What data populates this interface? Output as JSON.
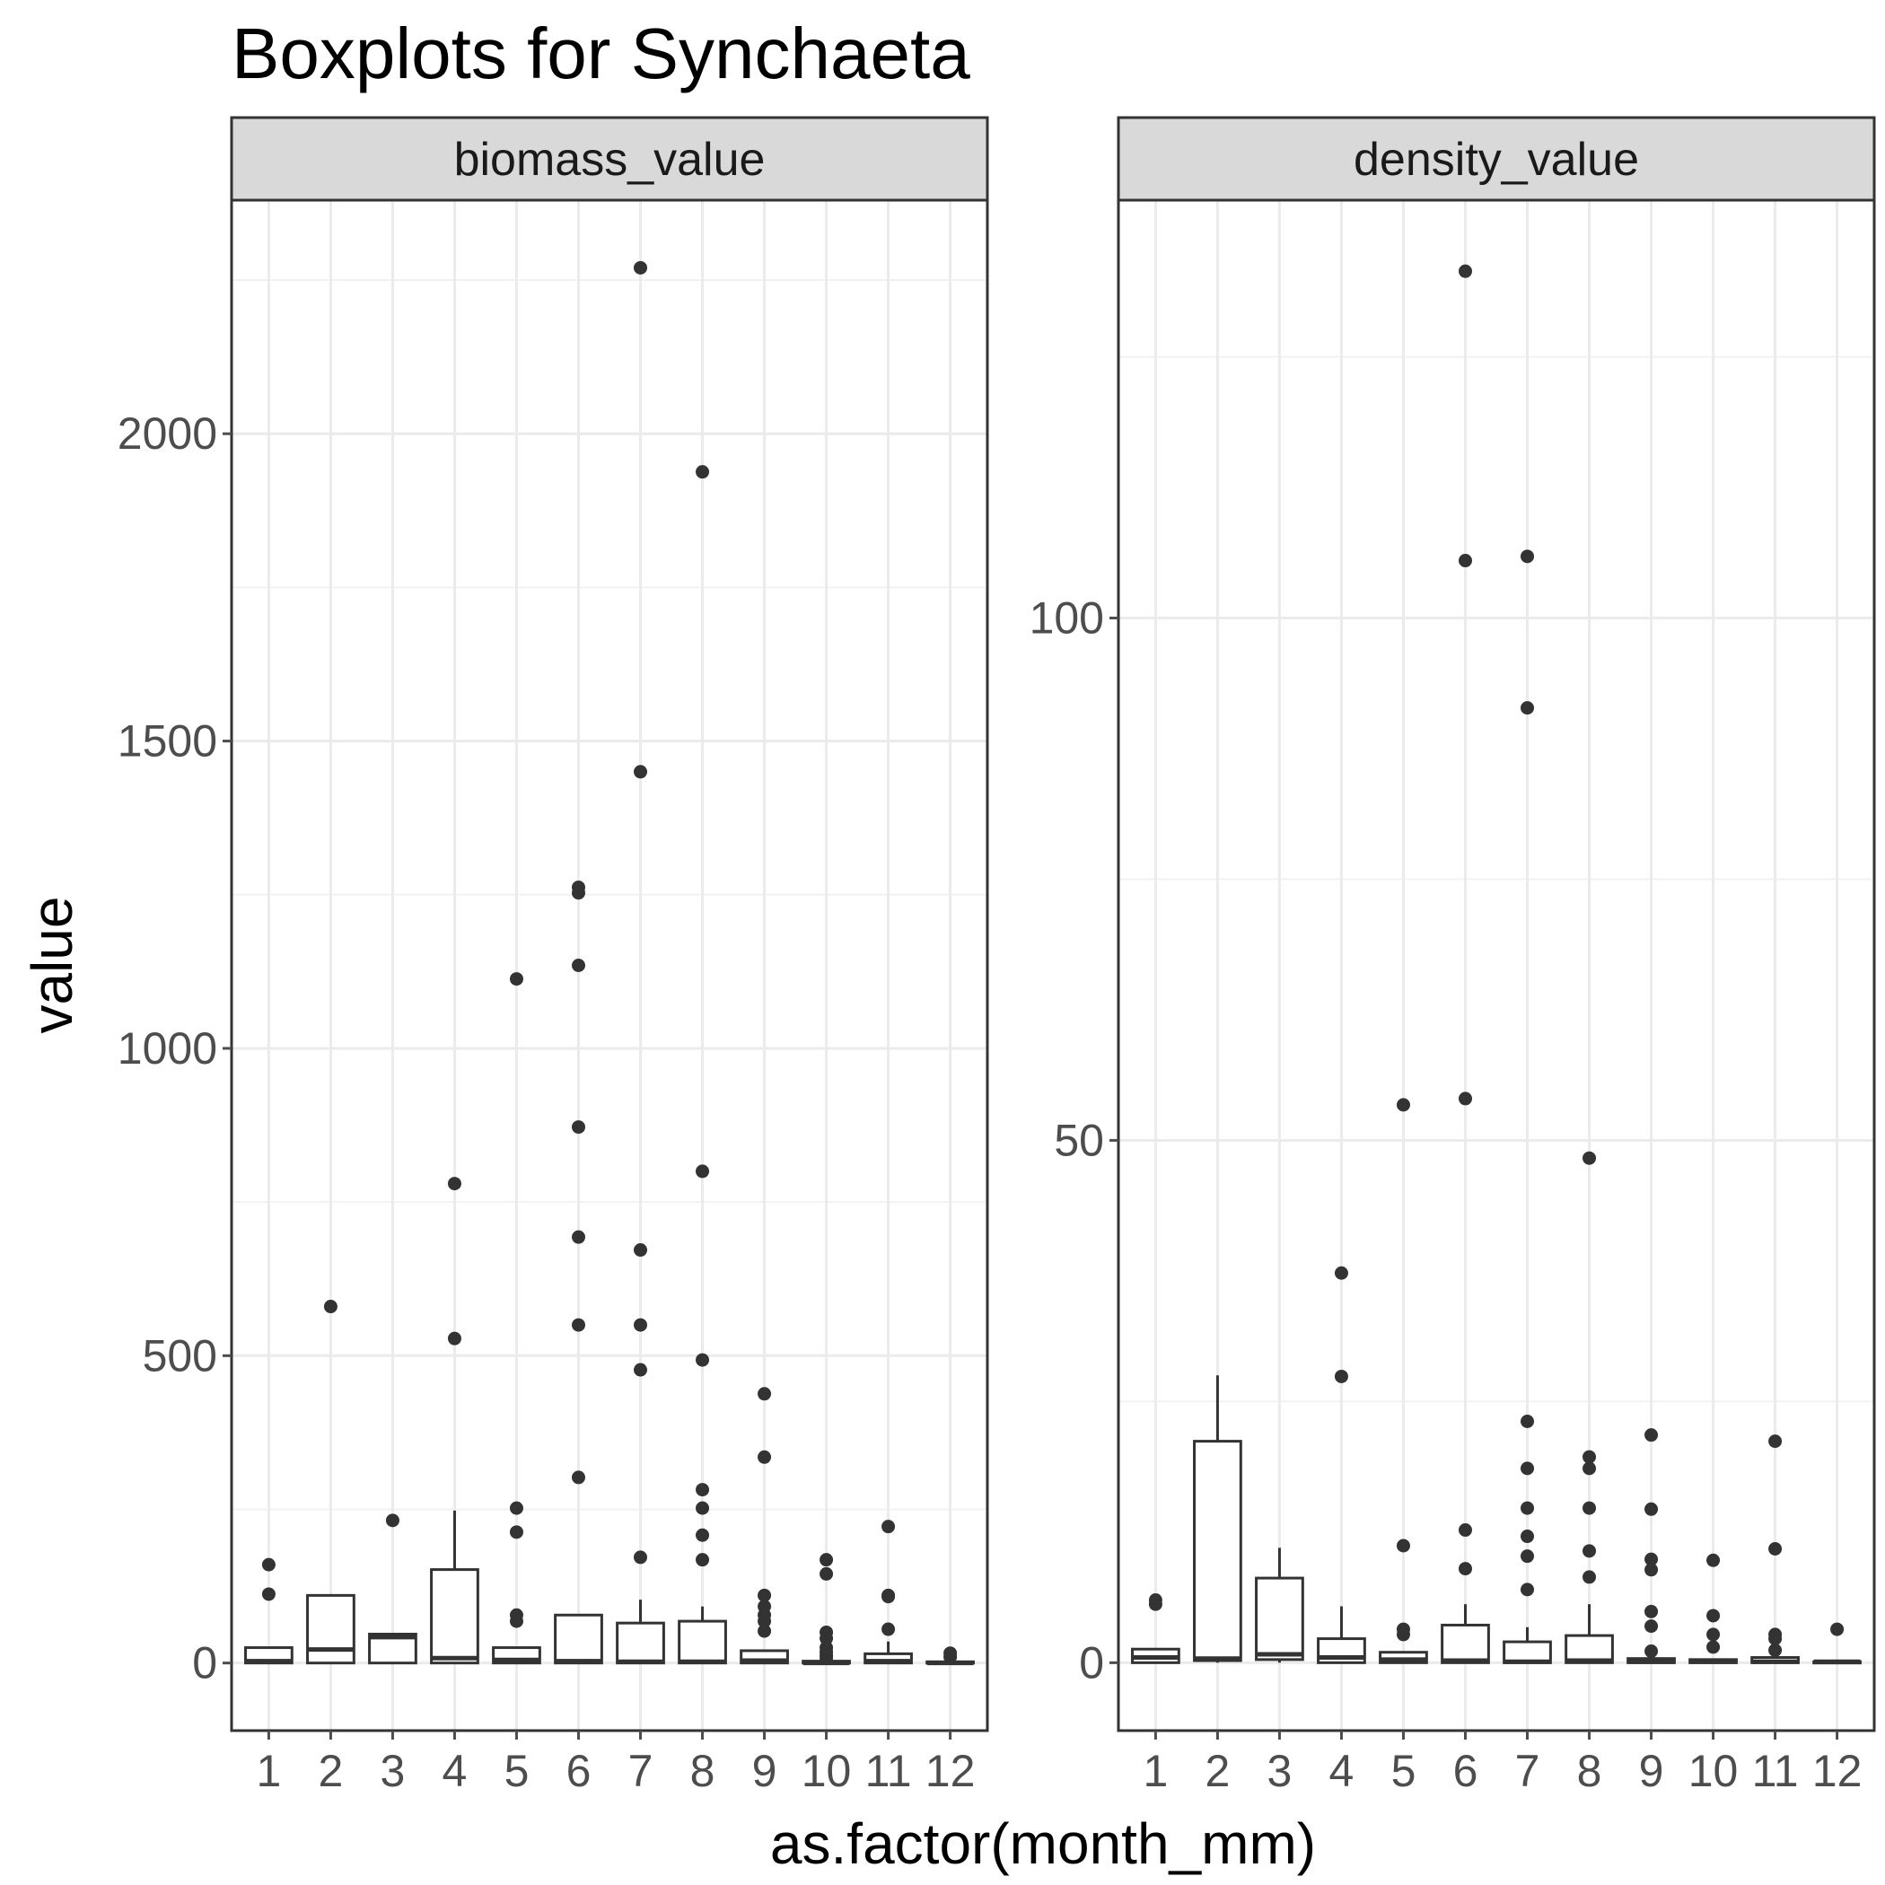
{
  "title": "Boxplots for Synchaeta",
  "xlabel": "as.factor(month_mm)",
  "ylabel": "value",
  "chart_data": {
    "type": "boxplot",
    "title": "Boxplots for Synchaeta",
    "xlabel": "as.factor(month_mm)",
    "ylabel": "value",
    "categories": [
      "1",
      "2",
      "3",
      "4",
      "5",
      "6",
      "7",
      "8",
      "9",
      "10",
      "11",
      "12"
    ],
    "grid": true,
    "panels": [
      {
        "name": "biomass_value",
        "ylim": [
          -110,
          2380
        ],
        "yticks": [
          0,
          500,
          1000,
          1500,
          2000
        ],
        "ytick_labels": [
          "0",
          "500",
          "1000",
          "1500",
          "2000"
        ],
        "boxes": [
          {
            "q1": 0,
            "median": 3,
            "q3": 25,
            "whisker_low": 0,
            "whisker_high": 25,
            "outliers": [
              160,
              112
            ]
          },
          {
            "q1": 0,
            "median": 22,
            "q3": 110,
            "whisker_low": 0,
            "whisker_high": 110,
            "outliers": [
              580
            ]
          },
          {
            "q1": 0,
            "median": 42,
            "q3": 47,
            "whisker_low": 0,
            "whisker_high": 47,
            "outliers": [
              232
            ]
          },
          {
            "q1": 0,
            "median": 8,
            "q3": 152,
            "whisker_low": 0,
            "whisker_high": 248,
            "outliers": [
              780,
              528
            ]
          },
          {
            "q1": 0,
            "median": 5,
            "q3": 25,
            "whisker_low": 0,
            "whisker_high": 25,
            "outliers": [
              1113,
              252,
              213,
              78,
              68
            ]
          },
          {
            "q1": 0,
            "median": 3,
            "q3": 78,
            "whisker_low": 0,
            "whisker_high": 78,
            "outliers": [
              1262,
              1253,
              1135,
              872,
              693,
              550,
              302
            ]
          },
          {
            "q1": 0,
            "median": 2,
            "q3": 65,
            "whisker_low": 0,
            "whisker_high": 103,
            "outliers": [
              2270,
              1450,
              672,
              550,
              477,
              172
            ]
          },
          {
            "q1": 0,
            "median": 2,
            "q3": 68,
            "whisker_low": 0,
            "whisker_high": 92,
            "outliers": [
              1938,
              800,
              493,
              282,
              252,
              208,
              168
            ]
          },
          {
            "q1": 0,
            "median": 4,
            "q3": 20,
            "whisker_low": 0,
            "whisker_high": 20,
            "outliers": [
              438,
              335,
              110,
              92,
              78,
              68,
              52
            ]
          },
          {
            "q1": 0,
            "median": 0,
            "q3": 3,
            "whisker_low": 0,
            "whisker_high": 5,
            "outliers": [
              168,
              145,
              50,
              40,
              25,
              18,
              12,
              8
            ]
          },
          {
            "q1": 0,
            "median": 3,
            "q3": 15,
            "whisker_low": 0,
            "whisker_high": 35,
            "outliers": [
              222,
              110,
              108,
              55
            ]
          },
          {
            "q1": 0,
            "median": 0,
            "q3": 2,
            "whisker_low": 0,
            "whisker_high": 3,
            "outliers": [
              16,
              10
            ]
          }
        ]
      },
      {
        "name": "density_value",
        "ylim": [
          -6.5,
          140
        ],
        "yticks": [
          0,
          50,
          100
        ],
        "ytick_labels": [
          "0",
          "50",
          "100"
        ],
        "boxes": [
          {
            "q1": 0,
            "median": 0.5,
            "q3": 1.3,
            "whisker_low": 0,
            "whisker_high": 1.3,
            "outliers": [
              6.0,
              5.6
            ]
          },
          {
            "q1": 0.2,
            "median": 0.4,
            "q3": 21.2,
            "whisker_low": 0,
            "whisker_high": 27.5,
            "outliers": []
          },
          {
            "q1": 0.3,
            "median": 0.8,
            "q3": 8.1,
            "whisker_low": 0,
            "whisker_high": 11.0,
            "outliers": []
          },
          {
            "q1": 0,
            "median": 0.5,
            "q3": 2.3,
            "whisker_low": 0,
            "whisker_high": 5.4,
            "outliers": [
              37.3,
              27.4
            ]
          },
          {
            "q1": 0,
            "median": 0.3,
            "q3": 1.0,
            "whisker_low": 0,
            "whisker_high": 1.0,
            "outliers": [
              53.4,
              11.2,
              3.2,
              2.7
            ]
          },
          {
            "q1": 0,
            "median": 0.2,
            "q3": 3.6,
            "whisker_low": 0,
            "whisker_high": 5.6,
            "outliers": [
              133.2,
              105.5,
              54.0,
              12.7,
              9.0
            ]
          },
          {
            "q1": 0,
            "median": 0.1,
            "q3": 2.0,
            "whisker_low": 0,
            "whisker_high": 3.4,
            "outliers": [
              105.9,
              91.4,
              23.1,
              18.6,
              14.8,
              12.1,
              10.2,
              7.0
            ]
          },
          {
            "q1": 0,
            "median": 0.2,
            "q3": 2.6,
            "whisker_low": 0,
            "whisker_high": 5.6,
            "outliers": [
              48.3,
              19.7,
              18.6,
              14.8,
              10.7,
              8.2
            ]
          },
          {
            "q1": 0,
            "median": 0.1,
            "q3": 0.4,
            "whisker_low": 0,
            "whisker_high": 0.4,
            "outliers": [
              21.8,
              14.7,
              9.9,
              8.9,
              4.9,
              3.5,
              1.1
            ]
          },
          {
            "q1": 0,
            "median": 0.1,
            "q3": 0.3,
            "whisker_low": 0,
            "whisker_high": 0.3,
            "outliers": [
              9.8,
              4.5,
              2.7,
              1.5
            ]
          },
          {
            "q1": 0,
            "median": 0.1,
            "q3": 0.5,
            "whisker_low": 0,
            "whisker_high": 0.5,
            "outliers": [
              21.2,
              10.9,
              2.7,
              2.3,
              1.2
            ]
          },
          {
            "q1": 0,
            "median": 0.1,
            "q3": 0.1,
            "whisker_low": 0,
            "whisker_high": 0.1,
            "outliers": [
              3.2
            ]
          }
        ]
      }
    ]
  }
}
